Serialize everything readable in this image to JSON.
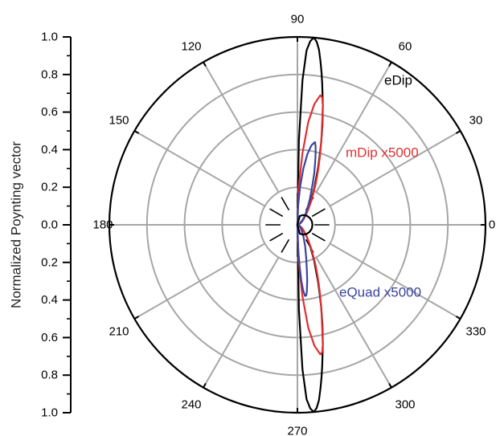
{
  "chart_data": {
    "type": "polar",
    "title": "",
    "ylabel": "Normalized Poynting vector",
    "radial_axis": {
      "tick_labels": [
        "1.0",
        "0.8",
        "0.6",
        "0.4",
        "0.2",
        "0.0",
        "0.2",
        "0.4",
        "0.6",
        "0.8",
        "1.0"
      ],
      "range": [
        0,
        1.0
      ],
      "grid_circles": [
        0.2,
        0.4,
        0.6,
        0.8,
        1.0
      ]
    },
    "angular_axis": {
      "unit": "degrees",
      "tick_labels": [
        "0",
        "30",
        "60",
        "90",
        "120",
        "150",
        "180",
        "210",
        "240",
        "270",
        "300",
        "330"
      ],
      "tick_angles": [
        0,
        30,
        60,
        90,
        120,
        150,
        180,
        210,
        240,
        270,
        300,
        330
      ],
      "grid": true
    },
    "series": [
      {
        "name": "eDip",
        "color": "#000000",
        "points": [
          {
            "angle": 0,
            "r": 0.0
          },
          {
            "angle": 5,
            "r": 0.0
          },
          {
            "angle": 10,
            "r": 0.0
          },
          {
            "angle": 15,
            "r": 0.0
          },
          {
            "angle": 20,
            "r": 0.01
          },
          {
            "angle": 25,
            "r": 0.01
          },
          {
            "angle": 30,
            "r": 0.02
          },
          {
            "angle": 35,
            "r": 0.02
          },
          {
            "angle": 40,
            "r": 0.03
          },
          {
            "angle": 45,
            "r": 0.05
          },
          {
            "angle": 50,
            "r": 0.07
          },
          {
            "angle": 55,
            "r": 0.1
          },
          {
            "angle": 60,
            "r": 0.14
          },
          {
            "angle": 65,
            "r": 0.21
          },
          {
            "angle": 70,
            "r": 0.32
          },
          {
            "angle": 72,
            "r": 0.38
          },
          {
            "angle": 74,
            "r": 0.46
          },
          {
            "angle": 76,
            "r": 0.55
          },
          {
            "angle": 78,
            "r": 0.65
          },
          {
            "angle": 80,
            "r": 0.76
          },
          {
            "angle": 81,
            "r": 0.82
          },
          {
            "angle": 82,
            "r": 0.88
          },
          {
            "angle": 83,
            "r": 0.94
          },
          {
            "angle": 84,
            "r": 0.98
          },
          {
            "angle": 85,
            "r": 1.0
          },
          {
            "angle": 86,
            "r": 0.98
          },
          {
            "angle": 87,
            "r": 0.93
          },
          {
            "angle": 88,
            "r": 0.77
          },
          {
            "angle": 89,
            "r": 0.45
          },
          {
            "angle": 90,
            "r": 0.0
          },
          {
            "angle": 270,
            "r": 0.0
          },
          {
            "angle": 271,
            "r": 0.45
          },
          {
            "angle": 272,
            "r": 0.77
          },
          {
            "angle": 273,
            "r": 0.93
          },
          {
            "angle": 274,
            "r": 0.98
          },
          {
            "angle": 275,
            "r": 1.0
          },
          {
            "angle": 276,
            "r": 0.98
          },
          {
            "angle": 277,
            "r": 0.94
          },
          {
            "angle": 278,
            "r": 0.88
          },
          {
            "angle": 279,
            "r": 0.82
          },
          {
            "angle": 280,
            "r": 0.76
          },
          {
            "angle": 282,
            "r": 0.65
          },
          {
            "angle": 284,
            "r": 0.55
          },
          {
            "angle": 286,
            "r": 0.46
          },
          {
            "angle": 288,
            "r": 0.38
          },
          {
            "angle": 290,
            "r": 0.32
          },
          {
            "angle": 295,
            "r": 0.21
          },
          {
            "angle": 300,
            "r": 0.14
          },
          {
            "angle": 305,
            "r": 0.1
          },
          {
            "angle": 310,
            "r": 0.07
          },
          {
            "angle": 315,
            "r": 0.05
          },
          {
            "angle": 320,
            "r": 0.03
          },
          {
            "angle": 325,
            "r": 0.02
          },
          {
            "angle": 330,
            "r": 0.02
          },
          {
            "angle": 335,
            "r": 0.01
          },
          {
            "angle": 340,
            "r": 0.01
          },
          {
            "angle": 345,
            "r": 0.0
          },
          {
            "angle": 350,
            "r": 0.0
          },
          {
            "angle": 355,
            "r": 0.0
          },
          {
            "angle": 360,
            "r": 0.0
          }
        ]
      },
      {
        "name": "mDip  x5000",
        "color": "#e03030",
        "points": [
          {
            "angle": 0,
            "r": 0.0
          },
          {
            "angle": 5,
            "r": 0.0
          },
          {
            "angle": 10,
            "r": 0.0
          },
          {
            "angle": 15,
            "r": 0.0
          },
          {
            "angle": 20,
            "r": 0.01
          },
          {
            "angle": 25,
            "r": 0.01
          },
          {
            "angle": 30,
            "r": 0.02
          },
          {
            "angle": 35,
            "r": 0.03
          },
          {
            "angle": 40,
            "r": 0.04
          },
          {
            "angle": 45,
            "r": 0.05
          },
          {
            "angle": 50,
            "r": 0.07
          },
          {
            "angle": 55,
            "r": 0.1
          },
          {
            "angle": 60,
            "r": 0.15
          },
          {
            "angle": 62,
            "r": 0.17
          },
          {
            "angle": 64,
            "r": 0.2
          },
          {
            "angle": 66,
            "r": 0.24
          },
          {
            "angle": 68,
            "r": 0.28
          },
          {
            "angle": 70,
            "r": 0.33
          },
          {
            "angle": 72,
            "r": 0.39
          },
          {
            "angle": 74,
            "r": 0.46
          },
          {
            "angle": 76,
            "r": 0.54
          },
          {
            "angle": 77,
            "r": 0.59
          },
          {
            "angle": 78,
            "r": 0.65
          },
          {
            "angle": 79,
            "r": 0.69
          },
          {
            "angle": 80,
            "r": 0.7
          },
          {
            "angle": 82,
            "r": 0.65
          },
          {
            "angle": 84,
            "r": 0.55
          },
          {
            "angle": 86,
            "r": 0.38
          },
          {
            "angle": 88,
            "r": 0.2
          },
          {
            "angle": 90,
            "r": 0.0
          },
          {
            "angle": 270,
            "r": 0.0
          },
          {
            "angle": 272,
            "r": 0.2
          },
          {
            "angle": 274,
            "r": 0.38
          },
          {
            "angle": 276,
            "r": 0.55
          },
          {
            "angle": 278,
            "r": 0.65
          },
          {
            "angle": 280,
            "r": 0.7
          },
          {
            "angle": 281,
            "r": 0.69
          },
          {
            "angle": 282,
            "r": 0.65
          },
          {
            "angle": 283,
            "r": 0.59
          },
          {
            "angle": 284,
            "r": 0.54
          },
          {
            "angle": 286,
            "r": 0.46
          },
          {
            "angle": 288,
            "r": 0.39
          },
          {
            "angle": 290,
            "r": 0.33
          },
          {
            "angle": 292,
            "r": 0.28
          },
          {
            "angle": 294,
            "r": 0.24
          },
          {
            "angle": 296,
            "r": 0.2
          },
          {
            "angle": 298,
            "r": 0.17
          },
          {
            "angle": 300,
            "r": 0.15
          },
          {
            "angle": 305,
            "r": 0.1
          },
          {
            "angle": 310,
            "r": 0.07
          },
          {
            "angle": 315,
            "r": 0.05
          },
          {
            "angle": 320,
            "r": 0.04
          },
          {
            "angle": 325,
            "r": 0.03
          },
          {
            "angle": 330,
            "r": 0.02
          },
          {
            "angle": 335,
            "r": 0.01
          },
          {
            "angle": 340,
            "r": 0.01
          },
          {
            "angle": 345,
            "r": 0.0
          },
          {
            "angle": 350,
            "r": 0.0
          },
          {
            "angle": 355,
            "r": 0.0
          },
          {
            "angle": 360,
            "r": 0.0
          }
        ]
      },
      {
        "name": "eQuad  x5000",
        "color": "#3a44a0",
        "points": [
          {
            "angle": 0,
            "r": 0.0
          },
          {
            "angle": 10,
            "r": 0.0
          },
          {
            "angle": 20,
            "r": 0.01
          },
          {
            "angle": 30,
            "r": 0.02
          },
          {
            "angle": 40,
            "r": 0.03
          },
          {
            "angle": 45,
            "r": 0.04
          },
          {
            "angle": 50,
            "r": 0.06
          },
          {
            "angle": 55,
            "r": 0.08
          },
          {
            "angle": 60,
            "r": 0.11
          },
          {
            "angle": 64,
            "r": 0.15
          },
          {
            "angle": 68,
            "r": 0.2
          },
          {
            "angle": 70,
            "r": 0.24
          },
          {
            "angle": 72,
            "r": 0.29
          },
          {
            "angle": 74,
            "r": 0.34
          },
          {
            "angle": 75,
            "r": 0.37
          },
          {
            "angle": 76,
            "r": 0.4
          },
          {
            "angle": 77,
            "r": 0.43
          },
          {
            "angle": 78,
            "r": 0.45
          },
          {
            "angle": 80,
            "r": 0.43
          },
          {
            "angle": 82,
            "r": 0.38
          },
          {
            "angle": 84,
            "r": 0.3
          },
          {
            "angle": 86,
            "r": 0.2
          },
          {
            "angle": 88,
            "r": 0.1
          },
          {
            "angle": 90,
            "r": 0.0
          },
          {
            "angle": 270,
            "r": 0.0
          },
          {
            "angle": 271,
            "r": 0.05
          },
          {
            "angle": 272,
            "r": 0.14
          },
          {
            "angle": 273,
            "r": 0.22
          },
          {
            "angle": 274,
            "r": 0.3
          },
          {
            "angle": 275,
            "r": 0.35
          },
          {
            "angle": 276,
            "r": 0.38
          },
          {
            "angle": 277,
            "r": 0.38
          },
          {
            "angle": 278,
            "r": 0.36
          },
          {
            "angle": 280,
            "r": 0.3
          },
          {
            "angle": 282,
            "r": 0.24
          },
          {
            "angle": 285,
            "r": 0.18
          },
          {
            "angle": 290,
            "r": 0.12
          },
          {
            "angle": 300,
            "r": 0.06
          },
          {
            "angle": 310,
            "r": 0.03
          },
          {
            "angle": 320,
            "r": 0.02
          },
          {
            "angle": 330,
            "r": 0.01
          },
          {
            "angle": 340,
            "r": 0.0
          },
          {
            "angle": 350,
            "r": 0.0
          },
          {
            "angle": 360,
            "r": 0.0
          }
        ]
      },
      {
        "name": "",
        "color": "#000000",
        "points": [
          {
            "angle": 0,
            "r": 0.08
          },
          {
            "angle": 15,
            "r": 0.079
          },
          {
            "angle": 30,
            "r": 0.075
          },
          {
            "angle": 45,
            "r": 0.069
          },
          {
            "angle": 60,
            "r": 0.06
          },
          {
            "angle": 75,
            "r": 0.049
          },
          {
            "angle": 90,
            "r": 0.0
          },
          {
            "angle": 270,
            "r": 0.0
          },
          {
            "angle": 285,
            "r": 0.049
          },
          {
            "angle": 300,
            "r": 0.06
          },
          {
            "angle": 315,
            "r": 0.069
          },
          {
            "angle": 330,
            "r": 0.075
          },
          {
            "angle": 345,
            "r": 0.079
          },
          {
            "angle": 360,
            "r": 0.08
          }
        ]
      }
    ],
    "legend": "labels placed next to curves"
  }
}
